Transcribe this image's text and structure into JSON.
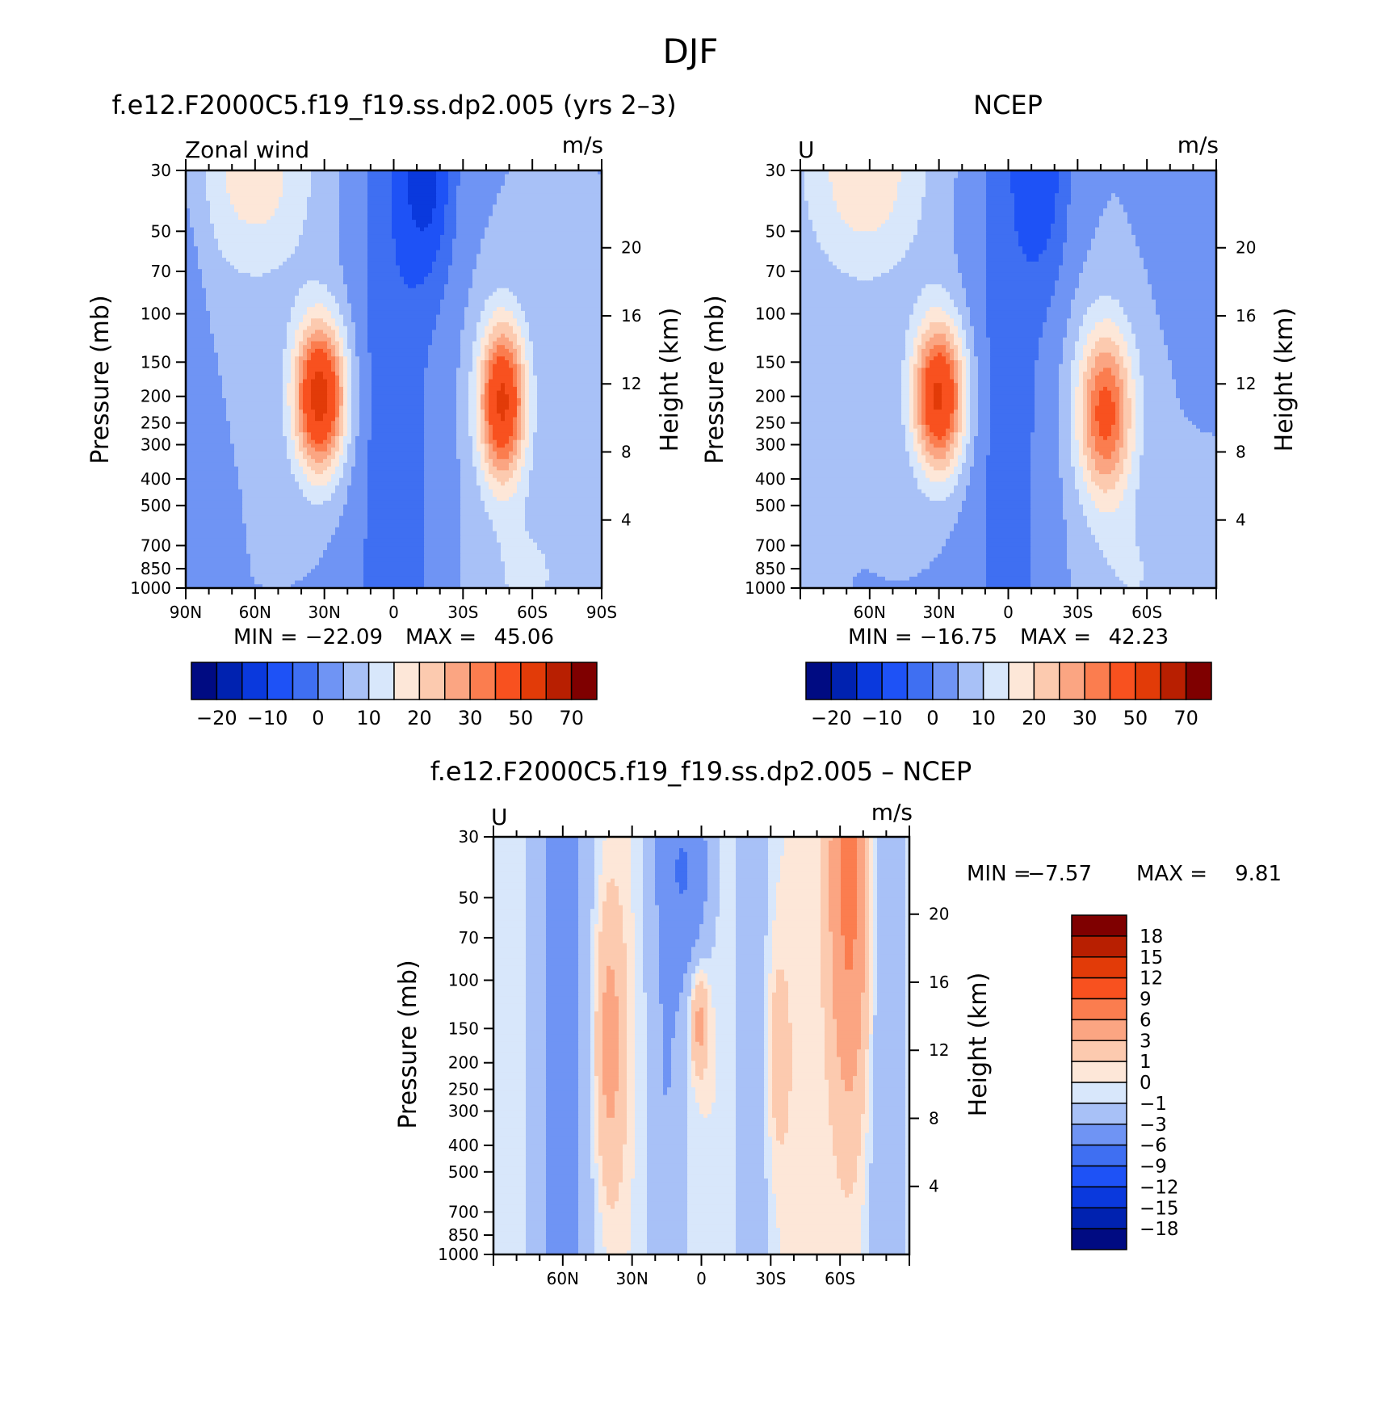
{
  "figure": {
    "title": "DJF"
  },
  "colors": {
    "abs_palette": [
      "#000b82",
      "#0022b0",
      "#0a39dd",
      "#1e52f6",
      "#3f6ff2",
      "#6f94f4",
      "#a8c1f7",
      "#d8e7fb",
      "#fde7d8",
      "#fccaaf",
      "#fba582",
      "#fb7d4f",
      "#f8511f",
      "#e23b08",
      "#b81f01",
      "#7f0000"
    ],
    "diff_palette": [
      "#000b82",
      "#0022b0",
      "#0a39dd",
      "#1e52f6",
      "#3f6ff2",
      "#6f94f4",
      "#a8c1f7",
      "#d8e7fb",
      "#fde7d8",
      "#fccaaf",
      "#fba582",
      "#fb7d4f",
      "#f8511f",
      "#e23b08",
      "#b81f01",
      "#7f0000"
    ]
  },
  "chart_data": [
    {
      "type": "heatmap",
      "title": "f.e12.F2000C5.f19_f19.ss.dp2.005 (yrs 2–3)",
      "left_string": "Zonal wind",
      "right_string": "m/s",
      "ylabel": "Pressure (mb)",
      "ylabel_right": "Height (km)",
      "x_ticklabels": [
        "90N",
        "60N",
        "30N",
        "0",
        "30S",
        "60S",
        "90S"
      ],
      "y_ticklabels": [
        "30",
        "50",
        "70",
        "100",
        "150",
        "200",
        "250",
        "300",
        "400",
        "500",
        "700",
        "850",
        "1000"
      ],
      "height_ticklabels": [
        "20",
        "16",
        "12",
        "8",
        "4"
      ],
      "min_label": "MIN =",
      "min_value": "−22.09",
      "max_label": "MAX =",
      "max_value": "45.06",
      "ylim": [
        1000,
        30
      ],
      "xlim": [
        90,
        -90
      ],
      "colorbar_labels": [
        "−20",
        "−10",
        "0",
        "10",
        "20",
        "30",
        "50",
        "70"
      ],
      "colorbar_levels": [
        -25,
        -20,
        -15,
        -10,
        -5,
        0,
        5,
        10,
        15,
        20,
        25,
        30,
        40,
        50,
        60,
        70
      ],
      "jets": [
        {
          "lat": 32,
          "pressure": 200,
          "max": 45.06
        },
        {
          "lat": -47,
          "pressure": 200,
          "max": 42.0
        }
      ],
      "easterly_min": {
        "lat": -15,
        "pressure": 30,
        "min": -22.09
      }
    },
    {
      "type": "heatmap",
      "title": "NCEP",
      "left_string": "U",
      "right_string": "m/s",
      "ylabel": "Pressure (mb)",
      "ylabel_right": "Height (km)",
      "x_ticklabels": [
        "60N",
        "30N",
        "0",
        "30S",
        "60S"
      ],
      "y_ticklabels": [
        "30",
        "50",
        "70",
        "100",
        "150",
        "200",
        "250",
        "300",
        "400",
        "500",
        "700",
        "850",
        "1000"
      ],
      "height_ticklabels": [
        "20",
        "16",
        "12",
        "8",
        "4"
      ],
      "min_label": "MIN =",
      "min_value": "−16.75",
      "max_label": "MAX =",
      "max_value": "42.23",
      "ylim": [
        1000,
        30
      ],
      "xlim": [
        90,
        -90
      ],
      "colorbar_labels": [
        "−20",
        "−10",
        "0",
        "10",
        "20",
        "30",
        "50",
        "70"
      ],
      "colorbar_levels": [
        -25,
        -20,
        -15,
        -10,
        -5,
        0,
        5,
        10,
        15,
        20,
        25,
        30,
        40,
        50,
        60,
        70
      ],
      "jets": [
        {
          "lat": 30,
          "pressure": 200,
          "max": 42.23
        },
        {
          "lat": -42,
          "pressure": 200,
          "max": 33.0
        }
      ],
      "easterly_min": {
        "lat": -15,
        "pressure": 30,
        "min": -16.75
      }
    },
    {
      "type": "heatmap",
      "title": "f.e12.F2000C5.f19_f19.ss.dp2.005 – NCEP",
      "left_string": "U",
      "right_string": "m/s",
      "ylabel": "Pressure (mb)",
      "ylabel_right": "Height (km)",
      "x_ticklabels": [
        "60N",
        "30N",
        "0",
        "30S",
        "60S"
      ],
      "y_ticklabels": [
        "30",
        "50",
        "70",
        "100",
        "150",
        "200",
        "250",
        "300",
        "400",
        "500",
        "700",
        "850",
        "1000"
      ],
      "height_ticklabels": [
        "20",
        "16",
        "12",
        "8",
        "4"
      ],
      "min_label": "MIN =",
      "min_value": "−7.57",
      "max_label": "MAX =",
      "max_value": "9.81",
      "ylim": [
        1000,
        30
      ],
      "xlim": [
        90,
        -90
      ],
      "colorbar_labels": [
        "18",
        "15",
        "12",
        "9",
        "6",
        "3",
        "1",
        "0",
        "−1",
        "−3",
        "−6",
        "−9",
        "−12",
        "−15",
        "−18"
      ],
      "colorbar_levels": [
        -18,
        -15,
        -12,
        -9,
        -6,
        -3,
        -1,
        0,
        1,
        3,
        6,
        9,
        12,
        15,
        18
      ]
    }
  ]
}
